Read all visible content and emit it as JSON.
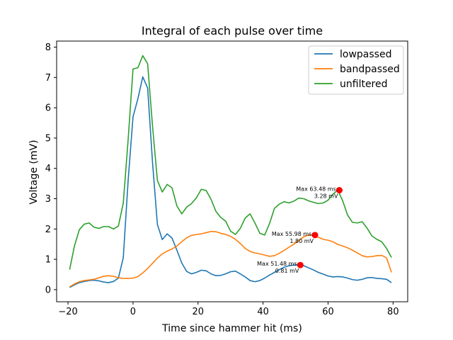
{
  "chart_data": {
    "type": "line",
    "title": "Integral of each pulse over time",
    "xlabel": "Time since hammer hit (ms)",
    "ylabel": "Voltage (mV)",
    "xlim": [
      -23.5,
      84.5
    ],
    "ylim": [
      -0.4,
      8.2
    ],
    "xticks": [
      -20,
      0,
      20,
      40,
      60,
      80
    ],
    "yticks": [
      0,
      1,
      2,
      3,
      4,
      5,
      6,
      7,
      8
    ],
    "grid": false,
    "legend_position": "top-right",
    "x": [
      -19.5,
      -18,
      -16.5,
      -15,
      -13.5,
      -12,
      -10.5,
      -9,
      -7.5,
      -6,
      -4.5,
      -3,
      -1.5,
      0,
      1.5,
      3,
      4.5,
      6,
      7.5,
      9,
      10.5,
      12,
      13.5,
      15,
      16.5,
      18,
      19.5,
      21,
      22.5,
      24,
      25.5,
      27,
      28.5,
      30,
      31.5,
      33,
      34.5,
      36,
      37.5,
      39,
      40.5,
      42,
      43.5,
      45,
      46.5,
      48,
      49.5,
      51,
      52.5,
      54,
      55.5,
      57,
      58.5,
      60,
      61.5,
      63,
      64.5,
      66,
      67.5,
      69,
      70.5,
      72,
      73.5,
      75,
      76.5,
      78,
      79.5
    ],
    "series": [
      {
        "name": "lowpassed",
        "color": "#1f77b4",
        "values": [
          0.07,
          0.16,
          0.23,
          0.27,
          0.3,
          0.31,
          0.29,
          0.25,
          0.23,
          0.27,
          0.38,
          1.05,
          3.6,
          5.7,
          6.3,
          7.02,
          6.65,
          4.2,
          2.15,
          1.65,
          1.84,
          1.7,
          1.3,
          0.88,
          0.6,
          0.52,
          0.57,
          0.64,
          0.62,
          0.52,
          0.46,
          0.47,
          0.52,
          0.59,
          0.61,
          0.52,
          0.42,
          0.3,
          0.26,
          0.3,
          0.38,
          0.48,
          0.57,
          0.66,
          0.74,
          0.79,
          0.81,
          0.82,
          0.79,
          0.72,
          0.65,
          0.57,
          0.51,
          0.45,
          0.42,
          0.43,
          0.42,
          0.38,
          0.33,
          0.31,
          0.34,
          0.39,
          0.4,
          0.37,
          0.36,
          0.34,
          0.23
        ]
      },
      {
        "name": "bandpassed",
        "color": "#ff7f0e",
        "values": [
          0.09,
          0.19,
          0.26,
          0.3,
          0.32,
          0.34,
          0.39,
          0.44,
          0.46,
          0.44,
          0.39,
          0.37,
          0.37,
          0.38,
          0.43,
          0.55,
          0.7,
          0.87,
          1.04,
          1.18,
          1.27,
          1.34,
          1.44,
          1.58,
          1.71,
          1.79,
          1.82,
          1.84,
          1.88,
          1.92,
          1.91,
          1.86,
          1.82,
          1.76,
          1.66,
          1.52,
          1.36,
          1.26,
          1.21,
          1.18,
          1.14,
          1.1,
          1.12,
          1.2,
          1.3,
          1.4,
          1.5,
          1.62,
          1.74,
          1.8,
          1.8,
          1.73,
          1.66,
          1.63,
          1.58,
          1.49,
          1.44,
          1.38,
          1.3,
          1.21,
          1.12,
          1.08,
          1.09,
          1.12,
          1.13,
          1.05,
          0.57
        ]
      },
      {
        "name": "unfiltered",
        "color": "#2ca02c",
        "values": [
          0.66,
          1.45,
          1.98,
          2.16,
          2.2,
          2.06,
          2.02,
          2.08,
          2.08,
          2.0,
          2.1,
          2.85,
          4.95,
          7.28,
          7.32,
          7.72,
          7.45,
          5.4,
          3.6,
          3.22,
          3.47,
          3.36,
          2.76,
          2.5,
          2.72,
          2.84,
          3.03,
          3.31,
          3.27,
          2.98,
          2.58,
          2.38,
          2.26,
          1.93,
          1.82,
          2.02,
          2.36,
          2.5,
          2.2,
          1.86,
          1.8,
          2.18,
          2.68,
          2.82,
          2.9,
          2.86,
          2.92,
          3.02,
          3.0,
          2.93,
          2.88,
          2.84,
          2.86,
          2.95,
          3.15,
          3.28,
          2.93,
          2.46,
          2.22,
          2.2,
          2.24,
          2.03,
          1.77,
          1.66,
          1.58,
          1.36,
          1.06
        ]
      }
    ],
    "markers": [
      {
        "x": 51.48,
        "y": 0.81,
        "color": "#ff0000",
        "label_line1": "Max 51.48 ms:",
        "label_line2": "0.81 mV"
      },
      {
        "x": 55.98,
        "y": 1.8,
        "color": "#ff0000",
        "label_line1": "Max 55.98 ms:",
        "label_line2": "1.80 mV"
      },
      {
        "x": 63.48,
        "y": 3.28,
        "color": "#ff0000",
        "label_line1": "Max 63.48 ms:",
        "label_line2": "3.28 mV"
      }
    ]
  }
}
